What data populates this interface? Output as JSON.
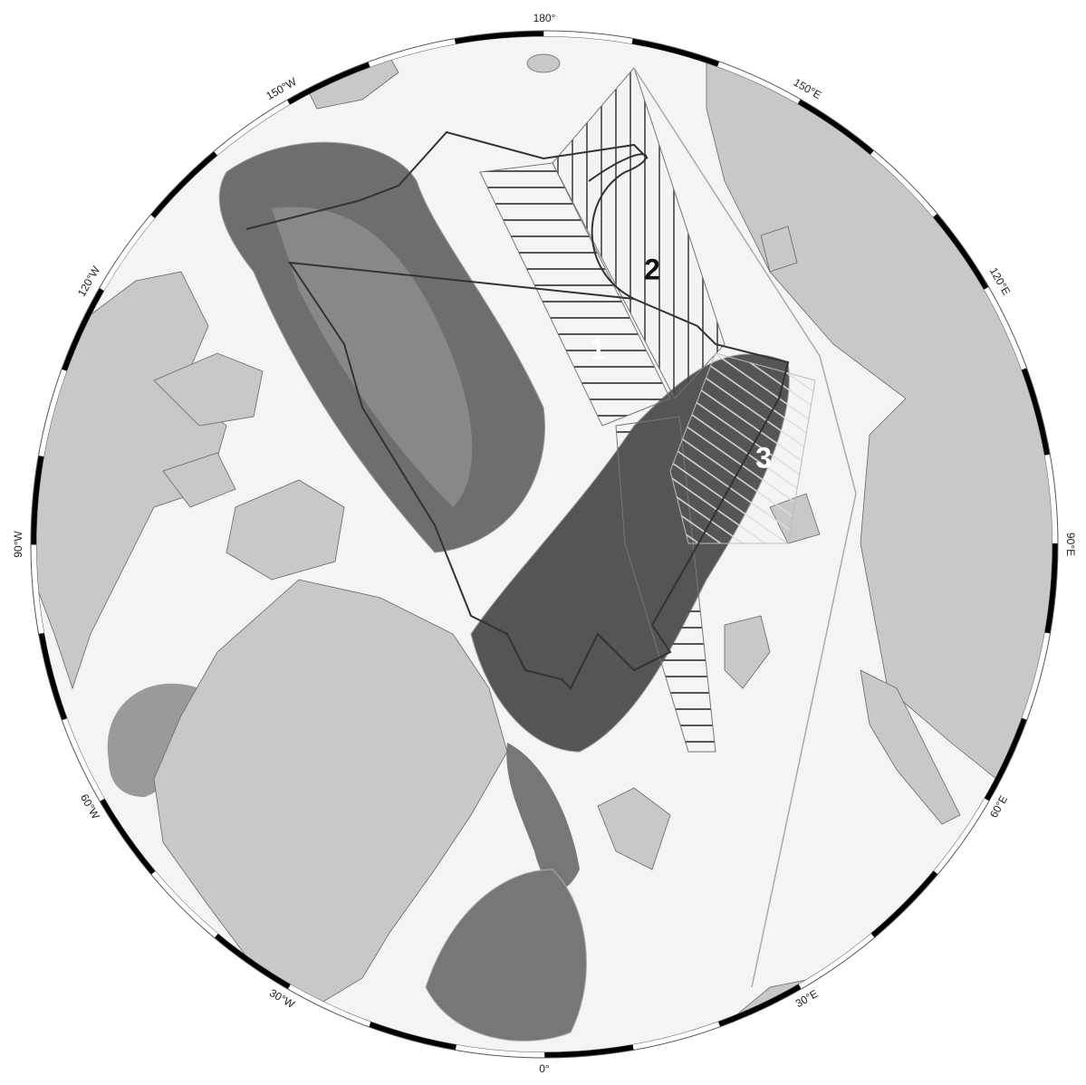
{
  "map": {
    "longitude_labels": [
      {
        "value": 180,
        "label": "180°"
      },
      {
        "value": 150,
        "label": "150°E"
      },
      {
        "value": 120,
        "label": "120°E"
      },
      {
        "value": 90,
        "label": "90°E"
      },
      {
        "value": 60,
        "label": "60°E"
      },
      {
        "value": 30,
        "label": "30°E"
      },
      {
        "value": 0,
        "label": "0°"
      },
      {
        "value": -30,
        "label": "30°W"
      },
      {
        "value": -60,
        "label": "60°W"
      },
      {
        "value": -90,
        "label": "90°W"
      },
      {
        "value": -120,
        "label": "120°W"
      },
      {
        "value": -150,
        "label": "150°W"
      }
    ],
    "region_labels": [
      "1",
      "2",
      "3"
    ]
  }
}
